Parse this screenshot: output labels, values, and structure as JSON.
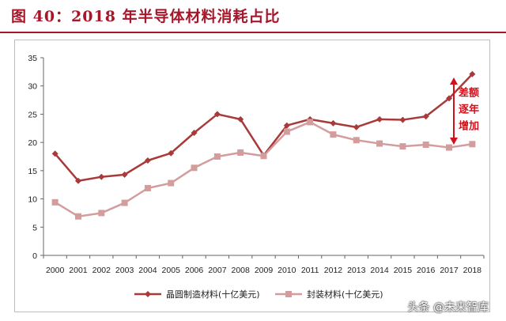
{
  "figure": {
    "title": "图 40：2018 年半导体材料消耗占比",
    "watermark": "头条 @未来智库"
  },
  "chart_data": {
    "type": "line",
    "title": "",
    "xlabel": "",
    "ylabel": "",
    "ylim": [
      0,
      35
    ],
    "yticks": [
      0,
      5,
      10,
      15,
      20,
      25,
      30,
      35
    ],
    "grid": false,
    "legend_position": "bottom",
    "categories": [
      "2000",
      "2001",
      "2002",
      "2003",
      "2004",
      "2005",
      "2006",
      "2007",
      "2008",
      "2009",
      "2010",
      "2011",
      "2012",
      "2013",
      "2014",
      "2015",
      "2016",
      "2017",
      "2018"
    ],
    "series": [
      {
        "name": "晶圆制造材料(十亿美元)",
        "color": "#a93a3a",
        "marker": "diamond",
        "values": [
          18.0,
          13.2,
          13.9,
          14.3,
          16.8,
          18.1,
          21.7,
          25.0,
          24.1,
          17.7,
          23.0,
          24.1,
          23.4,
          22.7,
          24.1,
          24.0,
          24.6,
          27.8,
          32.1
        ]
      },
      {
        "name": "封装材料(十亿美元)",
        "color": "#d49d9d",
        "marker": "square",
        "values": [
          9.4,
          6.9,
          7.5,
          9.3,
          11.9,
          12.8,
          15.5,
          17.5,
          18.2,
          17.6,
          21.9,
          23.6,
          21.4,
          20.4,
          19.8,
          19.3,
          19.6,
          19.1,
          19.7
        ]
      }
    ],
    "annotation": {
      "lines": [
        "差额",
        "逐年",
        "增加"
      ],
      "color": "#d0121c"
    }
  }
}
